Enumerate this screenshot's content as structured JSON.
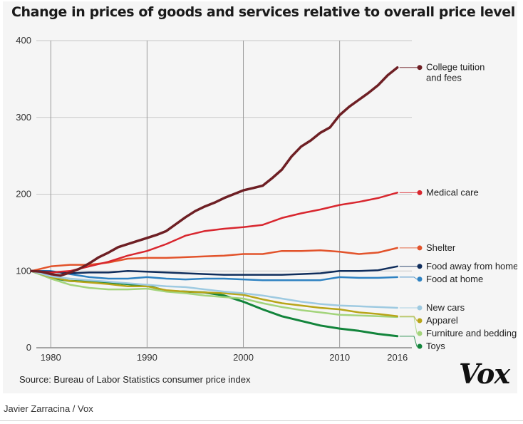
{
  "title": "Change in prices of goods and services relative to overall price level",
  "source": "Source: Bureau of Labor Statistics consumer price index",
  "brand": "Vox",
  "credit": "Javier Zarracina / Vox",
  "chart_data": {
    "type": "line",
    "title": "Change in prices of goods and services relative to overall price level",
    "xlabel": "",
    "ylabel": "",
    "xlim": [
      1978.5,
      2017.5
    ],
    "ylim": [
      0,
      400
    ],
    "x_ticks": [
      1980,
      1990,
      2000,
      2010,
      2016
    ],
    "x_tick_labels": [
      "1980",
      "1990",
      "2000",
      "2010",
      "2016"
    ],
    "y_ticks": [
      0,
      100,
      200,
      300,
      400
    ],
    "y_tick_labels": [
      "0",
      "100",
      "200",
      "300",
      "400"
    ],
    "vertical_gridlines_at": [
      1980,
      1990,
      2000,
      2010
    ],
    "series": [
      {
        "name": "College tuition and fees",
        "label_lines": [
          "College tuition",
          "and fees"
        ],
        "color": "#6e1f24",
        "width": 3.5,
        "x": [
          1978,
          1979,
          1980,
          1981,
          1982,
          1983,
          1984,
          1985,
          1986,
          1987,
          1988,
          1989,
          1990,
          1991,
          1992,
          1993,
          1994,
          1995,
          1996,
          1997,
          1998,
          1999,
          2000,
          2001,
          2002,
          2003,
          2004,
          2005,
          2006,
          2007,
          2008,
          2009,
          2010,
          2011,
          2012,
          2013,
          2014,
          2015,
          2016
        ],
        "values": [
          100,
          99,
          96,
          94,
          98,
          103,
          110,
          118,
          124,
          131,
          135,
          139,
          143,
          147,
          152,
          161,
          170,
          178,
          184,
          189,
          195,
          200,
          205,
          208,
          211,
          221,
          232,
          249,
          262,
          270,
          280,
          287,
          303,
          314,
          323,
          332,
          342,
          355,
          365
        ]
      },
      {
        "name": "Medical care",
        "label_lines": [
          "Medical care"
        ],
        "color": "#d8262e",
        "width": 2.5,
        "x": [
          1978,
          1980,
          1982,
          1984,
          1986,
          1988,
          1990,
          1992,
          1994,
          1996,
          1998,
          2000,
          2002,
          2004,
          2006,
          2008,
          2010,
          2012,
          2014,
          2016
        ],
        "values": [
          100,
          98,
          100,
          106,
          112,
          120,
          126,
          135,
          146,
          152,
          155,
          157,
          160,
          169,
          175,
          180,
          186,
          190,
          195,
          202
        ]
      },
      {
        "name": "Shelter",
        "label_lines": [
          "Shelter"
        ],
        "color": "#e2532b",
        "width": 2.5,
        "x": [
          1978,
          1980,
          1982,
          1984,
          1986,
          1988,
          1990,
          1992,
          1994,
          1996,
          1998,
          2000,
          2002,
          2004,
          2006,
          2008,
          2010,
          2012,
          2014,
          2016
        ],
        "values": [
          100,
          106,
          108,
          108,
          111,
          116,
          117,
          117,
          118,
          119,
          120,
          122,
          122,
          126,
          126,
          127,
          125,
          122,
          124,
          130
        ]
      },
      {
        "name": "Food away from home",
        "label_lines": [
          "Food away from home"
        ],
        "color": "#0f2d5c",
        "width": 2.5,
        "x": [
          1978,
          1980,
          1982,
          1984,
          1986,
          1988,
          1990,
          1992,
          1994,
          1996,
          1998,
          2000,
          2002,
          2004,
          2006,
          2008,
          2010,
          2012,
          2014,
          2016
        ],
        "values": [
          100,
          99,
          97,
          98,
          98,
          100,
          99,
          98,
          97,
          96,
          95,
          95,
          95,
          95,
          96,
          97,
          100,
          100,
          101,
          106
        ]
      },
      {
        "name": "Food at home",
        "label_lines": [
          "Food at home"
        ],
        "color": "#2e82c2",
        "width": 2.5,
        "x": [
          1978,
          1980,
          1982,
          1984,
          1986,
          1988,
          1990,
          1992,
          1994,
          1996,
          1998,
          2000,
          2002,
          2004,
          2006,
          2008,
          2010,
          2012,
          2014,
          2016
        ],
        "values": [
          100,
          100,
          96,
          92,
          90,
          90,
          92,
          90,
          89,
          90,
          90,
          89,
          88,
          88,
          88,
          88,
          92,
          91,
          91,
          92
        ]
      },
      {
        "name": "New cars",
        "label_lines": [
          "New cars"
        ],
        "color": "#9ecae1",
        "width": 2.5,
        "x": [
          1978,
          1980,
          1982,
          1984,
          1986,
          1988,
          1990,
          1992,
          1994,
          1996,
          1998,
          2000,
          2002,
          2004,
          2006,
          2008,
          2010,
          2012,
          2014,
          2016
        ],
        "values": [
          100,
          93,
          90,
          88,
          86,
          84,
          82,
          80,
          79,
          76,
          73,
          71,
          68,
          64,
          60,
          57,
          55,
          54,
          53,
          52
        ]
      },
      {
        "name": "Apparel",
        "label_lines": [
          "Apparel"
        ],
        "color": "#b8a519",
        "width": 2.5,
        "x": [
          1978,
          1980,
          1982,
          1984,
          1986,
          1988,
          1990,
          1992,
          1994,
          1996,
          1998,
          2000,
          2002,
          2004,
          2006,
          2008,
          2010,
          2012,
          2014,
          2016
        ],
        "values": [
          100,
          92,
          87,
          85,
          83,
          80,
          80,
          75,
          73,
          72,
          71,
          69,
          63,
          58,
          55,
          52,
          50,
          46,
          44,
          41
        ]
      },
      {
        "name": "Furniture and bedding",
        "label_lines": [
          "Furniture and bedding"
        ],
        "color": "#a3d47b",
        "width": 2.5,
        "x": [
          1978,
          1980,
          1982,
          1984,
          1986,
          1988,
          1990,
          1992,
          1994,
          1996,
          1998,
          2000,
          2002,
          2004,
          2006,
          2008,
          2010,
          2012,
          2014,
          2016
        ],
        "values": [
          100,
          90,
          82,
          78,
          76,
          76,
          77,
          73,
          71,
          68,
          66,
          64,
          58,
          53,
          49,
          46,
          43,
          42,
          41,
          40
        ]
      },
      {
        "name": "Toys",
        "label_lines": [
          "Toys"
        ],
        "color": "#12843b",
        "width": 3,
        "x": [
          1978,
          1980,
          1982,
          1984,
          1986,
          1988,
          1990,
          1992,
          1994,
          1996,
          1998,
          2000,
          2002,
          2004,
          2006,
          2008,
          2010,
          2012,
          2014,
          2016
        ],
        "values": [
          100,
          91,
          87,
          86,
          85,
          83,
          81,
          74,
          73,
          72,
          68,
          60,
          50,
          41,
          35,
          29,
          25,
          22,
          18,
          15
        ]
      }
    ]
  }
}
